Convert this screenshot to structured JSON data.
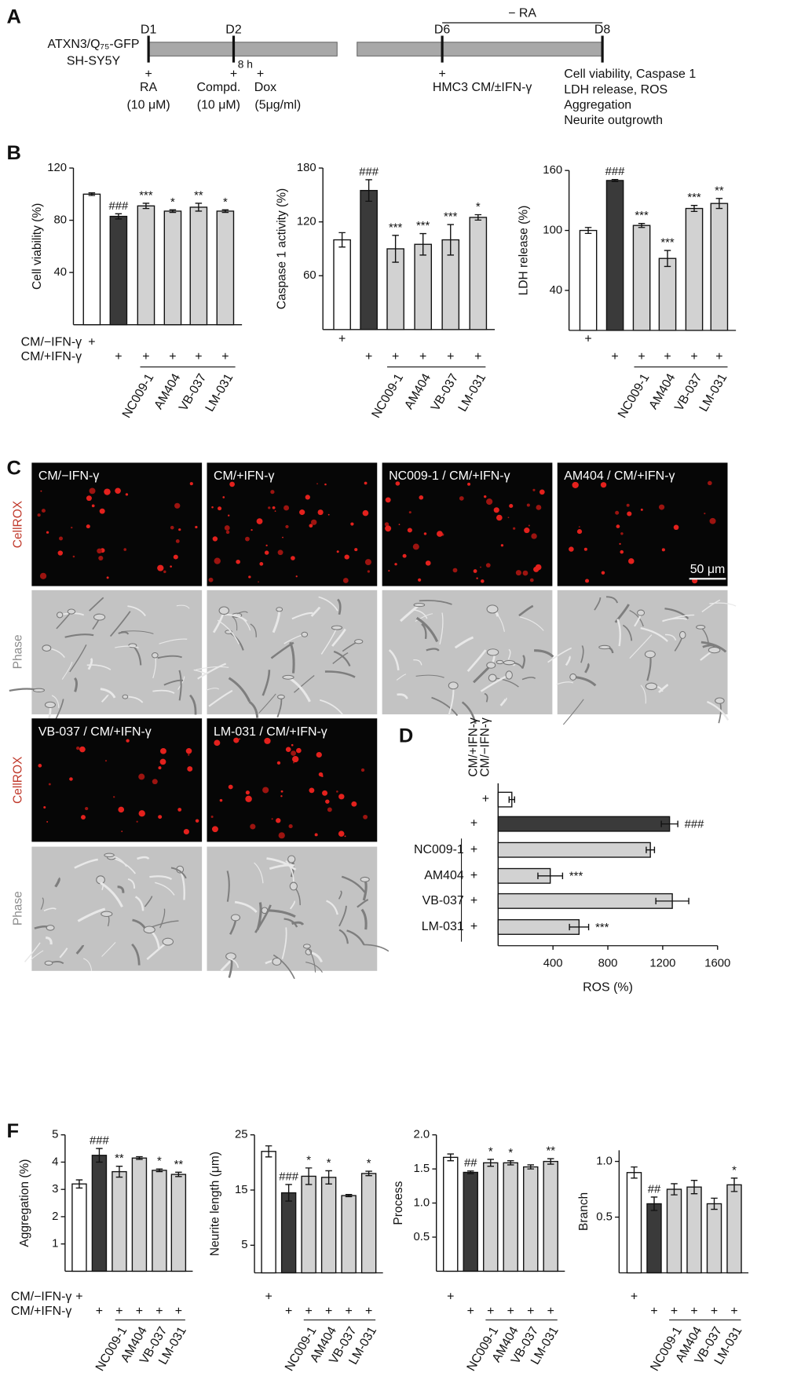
{
  "panels": [
    "A",
    "B",
    "C",
    "D",
    "F"
  ],
  "timeline": {
    "cell_line": [
      "ATXN3/Q₇₅-GFP",
      "SH-SY5Y"
    ],
    "days": [
      "D1",
      "D2",
      "D6",
      "D8"
    ],
    "minus_ra": "− RA",
    "interval": "8 h",
    "events": [
      {
        "mark": "+",
        "lines": [
          "RA",
          "(10 μM)"
        ]
      },
      {
        "mark": "+",
        "lines": [
          "Compd.",
          "(10 μM)"
        ]
      },
      {
        "mark": "+",
        "lines": [
          "Dox",
          "(5μg/ml)"
        ]
      },
      {
        "mark": "+",
        "lines": [
          "HMC3  CM/±IFN-γ"
        ]
      }
    ],
    "readouts": [
      "Cell viability, Caspase 1",
      "LDH release, ROS",
      "Aggregation",
      "Neurite outgrowth"
    ]
  },
  "micrographs": {
    "stains": [
      "CellROX",
      "Phase"
    ],
    "conditions": [
      "CM/−IFN-γ",
      "CM/+IFN-γ",
      "NC009-1  / CM/+IFN-γ",
      "AM404 / CM/+IFN-γ",
      "VB-037 / CM/+IFN-γ",
      "LM-031 / CM/+IFN-γ"
    ],
    "scale_bar": "50 μm"
  },
  "chart_data": [
    {
      "type": "bar",
      "y_label": "Cell viability (%)",
      "categories": [
        null,
        null,
        "NC009-1",
        "AM404",
        "VB-037",
        "LM-031"
      ],
      "values": [
        100,
        83,
        91,
        87,
        90,
        87
      ],
      "errors": [
        1,
        2,
        2,
        1,
        3,
        1
      ],
      "annotations": [
        null,
        "###",
        "***",
        "*",
        "**",
        "*"
      ],
      "colors": [
        "#ffffff",
        "#3a3a3a",
        "#d2d2d2",
        "#d2d2d2",
        "#d2d2d2",
        "#d2d2d2"
      ],
      "conditions": [
        {
          "label": "CM/−IFN-γ",
          "marks": [
            "+",
            null,
            null,
            null,
            null,
            null
          ]
        },
        {
          "label": "CM/+IFN-γ",
          "marks": [
            null,
            "+",
            "+",
            "+",
            "+",
            "+"
          ]
        }
      ],
      "ylim": [
        0,
        120
      ],
      "yticks": [
        40,
        80,
        120
      ]
    },
    {
      "type": "bar",
      "y_label": "Caspase 1 activity (%)",
      "categories": [
        null,
        null,
        "NC009-1",
        "AM404",
        "VB-037",
        "LM-031"
      ],
      "values": [
        100,
        155,
        90,
        95,
        100,
        125
      ],
      "errors": [
        8,
        12,
        15,
        12,
        17,
        3
      ],
      "annotations": [
        null,
        "###",
        "***",
        "***",
        "***",
        "*"
      ],
      "colors": [
        "#ffffff",
        "#3a3a3a",
        "#d2d2d2",
        "#d2d2d2",
        "#d2d2d2",
        "#d2d2d2"
      ],
      "conditions": [
        {
          "marks": [
            "+",
            null,
            null,
            null,
            null,
            null
          ]
        },
        {
          "marks": [
            null,
            "+",
            "+",
            "+",
            "+",
            "+"
          ]
        }
      ],
      "ylim": [
        0,
        180
      ],
      "yticks": [
        60,
        120,
        180
      ]
    },
    {
      "type": "bar",
      "y_label": "LDH release (%)",
      "categories": [
        null,
        null,
        "NC009-1",
        "AM404",
        "VB-037",
        "LM-031"
      ],
      "values": [
        100,
        150,
        105,
        72,
        122,
        127
      ],
      "errors": [
        3,
        1,
        2,
        8,
        3,
        5
      ],
      "annotations": [
        null,
        "###",
        "***",
        "***",
        "***",
        "**"
      ],
      "colors": [
        "#ffffff",
        "#3a3a3a",
        "#d2d2d2",
        "#d2d2d2",
        "#d2d2d2",
        "#d2d2d2"
      ],
      "conditions": [
        {
          "marks": [
            "+",
            null,
            null,
            null,
            null,
            null
          ]
        },
        {
          "marks": [
            null,
            "+",
            "+",
            "+",
            "+",
            "+"
          ]
        }
      ],
      "ylim": [
        0,
        160
      ],
      "yticks": [
        40,
        100,
        160
      ]
    },
    {
      "type": "barh",
      "x_label": "ROS (%)",
      "categories": [
        null,
        null,
        "NC009-1",
        "AM404",
        "VB-037",
        "LM-031"
      ],
      "values": [
        100,
        1250,
        1110,
        380,
        1270,
        590
      ],
      "errors": [
        20,
        60,
        30,
        90,
        120,
        70
      ],
      "annotations": [
        null,
        "###",
        null,
        "***",
        null,
        "***"
      ],
      "colors": [
        "#ffffff",
        "#3a3a3a",
        "#d2d2d2",
        "#d2d2d2",
        "#d2d2d2",
        "#d2d2d2"
      ],
      "conditions": [
        {
          "label": "CM/−IFN-γ",
          "marks": [
            "+",
            null,
            null,
            null,
            null,
            null
          ]
        },
        {
          "label": "CM/+IFN-γ",
          "marks": [
            null,
            "+",
            "+",
            "+",
            "+",
            "+"
          ]
        }
      ],
      "xlim": [
        0,
        1600
      ],
      "xticks": [
        400,
        800,
        1200,
        1600
      ]
    },
    {
      "type": "bar",
      "y_label": "Aggregation (%)",
      "categories": [
        null,
        null,
        "NC009-1",
        "AM404",
        "VB-037",
        "LM-031"
      ],
      "values": [
        3.2,
        4.25,
        3.65,
        4.15,
        3.7,
        3.55
      ],
      "errors": [
        0.15,
        0.25,
        0.2,
        0.05,
        0.05,
        0.08
      ],
      "annotations": [
        null,
        "###",
        "**",
        null,
        "*",
        "**"
      ],
      "colors": [
        "#ffffff",
        "#3a3a3a",
        "#d2d2d2",
        "#d2d2d2",
        "#d2d2d2",
        "#d2d2d2"
      ],
      "conditions": [
        {
          "label": "CM/−IFN-γ",
          "marks": [
            "+",
            null,
            null,
            null,
            null,
            null
          ]
        },
        {
          "label": "CM/+IFN-γ",
          "marks": [
            null,
            "+",
            "+",
            "+",
            "+",
            "+"
          ]
        }
      ],
      "ylim": [
        0,
        5
      ],
      "yticks": [
        1,
        2,
        3,
        4,
        5
      ]
    },
    {
      "type": "bar",
      "y_label": "Neurite length (μm)",
      "categories": [
        null,
        null,
        "NC009-1",
        "AM404",
        "VB-037",
        "LM-031"
      ],
      "values": [
        22,
        14.5,
        17.5,
        17.3,
        14,
        18
      ],
      "errors": [
        1,
        1.5,
        1.5,
        1.2,
        0.2,
        0.4
      ],
      "annotations": [
        null,
        "###",
        "*",
        "*",
        null,
        "*"
      ],
      "colors": [
        "#ffffff",
        "#3a3a3a",
        "#d2d2d2",
        "#d2d2d2",
        "#d2d2d2",
        "#d2d2d2"
      ],
      "conditions": [
        {
          "marks": [
            "+",
            null,
            null,
            null,
            null,
            null
          ]
        },
        {
          "marks": [
            null,
            "+",
            "+",
            "+",
            "+",
            "+"
          ]
        }
      ],
      "ylim": [
        0,
        25
      ],
      "yticks": [
        5,
        15,
        25
      ]
    },
    {
      "type": "bar",
      "y_label": "Process",
      "categories": [
        null,
        null,
        "NC009-1",
        "AM404",
        "VB-037",
        "LM-031"
      ],
      "values": [
        1.67,
        1.45,
        1.59,
        1.59,
        1.53,
        1.61
      ],
      "errors": [
        0.05,
        0.02,
        0.05,
        0.03,
        0.03,
        0.04
      ],
      "annotations": [
        null,
        "##",
        "*",
        "*",
        null,
        "**"
      ],
      "colors": [
        "#ffffff",
        "#3a3a3a",
        "#d2d2d2",
        "#d2d2d2",
        "#d2d2d2",
        "#d2d2d2"
      ],
      "conditions": [
        {
          "marks": [
            "+",
            null,
            null,
            null,
            null,
            null
          ]
        },
        {
          "marks": [
            null,
            "+",
            "+",
            "+",
            "+",
            "+"
          ]
        }
      ],
      "ylim": [
        0,
        2
      ],
      "yticks": [
        0.5,
        {
          "value": 1,
          "label": "1.0"
        },
        1.5,
        {
          "value": 2,
          "label": "2.0"
        }
      ]
    },
    {
      "type": "bar",
      "y_label": "Branch",
      "categories": [
        null,
        null,
        "NC009-1",
        "AM404",
        "VB-037",
        "LM-031"
      ],
      "values": [
        0.9,
        0.62,
        0.75,
        0.77,
        0.62,
        0.79
      ],
      "errors": [
        0.05,
        0.06,
        0.05,
        0.06,
        0.05,
        0.06
      ],
      "annotations": [
        null,
        "##",
        null,
        null,
        null,
        "*"
      ],
      "colors": [
        "#ffffff",
        "#3a3a3a",
        "#d2d2d2",
        "#d2d2d2",
        "#d2d2d2",
        "#d2d2d2"
      ],
      "conditions": [
        {
          "marks": [
            "+",
            null,
            null,
            null,
            null,
            null
          ]
        },
        {
          "marks": [
            null,
            "+",
            "+",
            "+",
            "+",
            "+"
          ]
        }
      ],
      "ylim": [
        0,
        1.1
      ],
      "yticks": [
        0.5,
        {
          "value": 1,
          "label": "1.0"
        }
      ]
    }
  ]
}
